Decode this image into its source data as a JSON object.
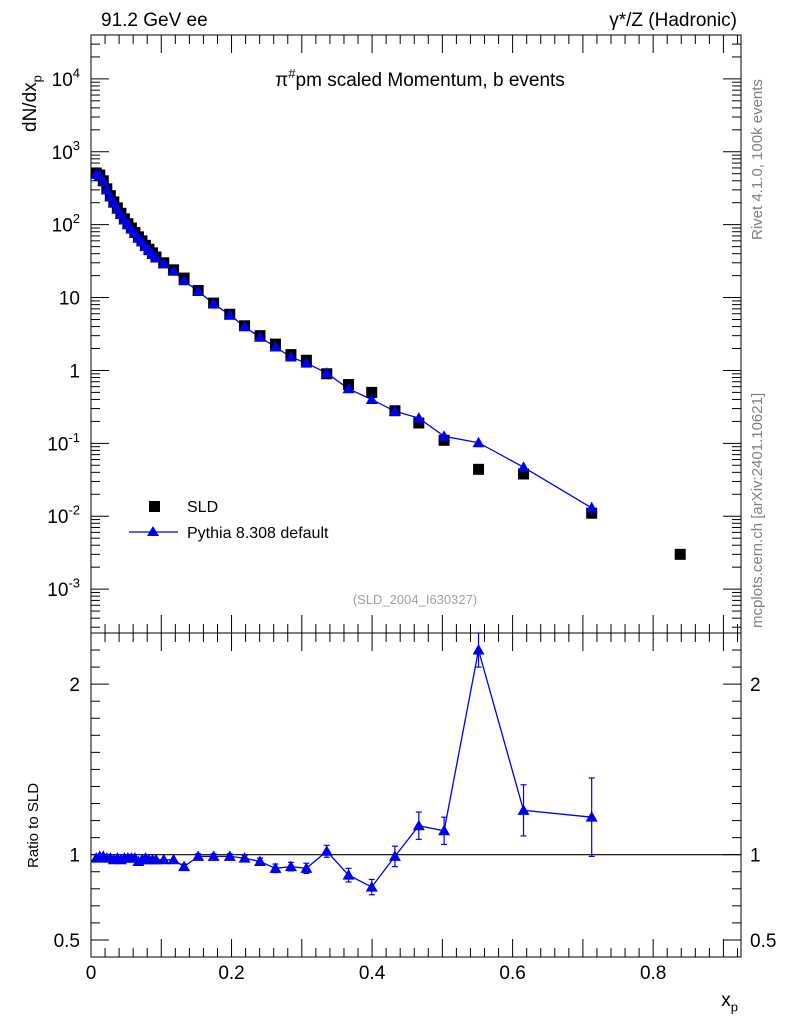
{
  "header": {
    "left": "91.2 GeV ee",
    "right": "γ*/Z (Hadronic)"
  },
  "side_text": {
    "rivet": "Rivet 4.1.0,  100k events",
    "source": "mcplots.cern.ch [arXiv:2401.10621]"
  },
  "chart_data": [
    {
      "type": "scatter",
      "title": "π#pm scaled Momentum, b events",
      "watermark": "(SLD_2004_I630327)",
      "xlabel": "x_p",
      "ylabel": "dN/dx_p",
      "yscale": "log",
      "xlim": [
        0,
        0.925
      ],
      "ylim": [
        0.00025,
        40000
      ],
      "y_tick_labels": [
        "10^{-3}",
        "10^{-2}",
        "10^{-1}",
        "1",
        "10",
        "10^{2}",
        "10^{3}",
        "10^{4}"
      ],
      "legend": {
        "placement": "bottom-left",
        "entries": [
          "SLD",
          "Pythia 8.308 default"
        ]
      },
      "series": [
        {
          "name": "SLD",
          "marker": "square",
          "color": "#000000",
          "x": [
            0.0075,
            0.0125,
            0.0175,
            0.0225,
            0.0275,
            0.0325,
            0.0375,
            0.0425,
            0.0475,
            0.0525,
            0.0575,
            0.0625,
            0.0675,
            0.0725,
            0.0775,
            0.0825,
            0.0875,
            0.0925,
            0.1035,
            0.1175,
            0.1325,
            0.1525,
            0.1745,
            0.1975,
            0.2185,
            0.2405,
            0.2625,
            0.2845,
            0.3065,
            0.3355,
            0.3665,
            0.3995,
            0.4325,
            0.4665,
            0.5025,
            0.5515,
            0.6155,
            0.7125,
            0.8385
          ],
          "y": [
            510,
            480,
            400,
            310,
            250,
            205,
            170,
            143,
            120,
            103,
            90,
            78,
            68,
            60,
            52,
            46,
            41,
            36,
            30,
            24,
            18.5,
            12.5,
            8.4,
            5.9,
            4.1,
            3.0,
            2.3,
            1.65,
            1.38,
            0.9,
            0.64,
            0.5,
            0.28,
            0.19,
            0.11,
            0.044,
            0.038,
            0.011,
            0.003
          ]
        },
        {
          "name": "Pythia 8.308 default",
          "marker": "triangle",
          "color": "#0000ee",
          "x": [
            0.0075,
            0.0125,
            0.0175,
            0.0225,
            0.0275,
            0.0325,
            0.0375,
            0.0425,
            0.0475,
            0.0525,
            0.0575,
            0.0625,
            0.0675,
            0.0725,
            0.0775,
            0.0825,
            0.0875,
            0.0925,
            0.1035,
            0.1175,
            0.1325,
            0.1525,
            0.1745,
            0.1975,
            0.2185,
            0.2405,
            0.2625,
            0.2845,
            0.3065,
            0.3355,
            0.3665,
            0.3995,
            0.4325,
            0.4665,
            0.5025,
            0.5515,
            0.6155,
            0.7125
          ],
          "y": [
            490,
            470,
            390,
            300,
            240,
            197,
            163,
            138,
            116,
            100,
            87,
            76,
            65,
            58,
            50,
            44,
            39,
            35,
            29,
            23,
            17,
            12.2,
            8.2,
            5.8,
            4.0,
            2.85,
            2.1,
            1.53,
            1.26,
            0.92,
            0.56,
            0.4,
            0.276,
            0.222,
            0.125,
            0.102,
            0.047,
            0.013
          ]
        }
      ]
    },
    {
      "type": "line",
      "title": "",
      "xlabel": "x_p",
      "ylabel": "Ratio to SLD",
      "ylim": [
        0.4,
        2.3
      ],
      "xlim": [
        0,
        0.925
      ],
      "y_ticks": [
        0.5,
        1,
        2
      ],
      "y_tick_labels": [
        "0.5",
        "1",
        "2"
      ],
      "x_ticks": [
        0,
        0.2,
        0.4,
        0.6,
        0.8
      ],
      "x_tick_labels": [
        "0",
        "0.2",
        "0.4",
        "0.6",
        "0.8"
      ],
      "reference_line": 1,
      "series": [
        {
          "name": "Pythia 8.308 default / SLD",
          "color": "#0000ee",
          "x": [
            0.0075,
            0.0125,
            0.0175,
            0.0225,
            0.0275,
            0.0325,
            0.0375,
            0.0425,
            0.0475,
            0.0525,
            0.0575,
            0.0625,
            0.0675,
            0.0725,
            0.0775,
            0.0825,
            0.0875,
            0.0925,
            0.1035,
            0.1175,
            0.1325,
            0.1525,
            0.1745,
            0.1975,
            0.2185,
            0.2405,
            0.2625,
            0.2845,
            0.3065,
            0.3355,
            0.3665,
            0.3995,
            0.4325,
            0.4665,
            0.5025,
            0.5515,
            0.6155,
            0.7125
          ],
          "values": [
            0.98,
            0.99,
            0.99,
            0.98,
            0.98,
            0.97,
            0.98,
            0.97,
            0.98,
            0.98,
            0.98,
            0.98,
            0.96,
            0.97,
            0.98,
            0.97,
            0.97,
            0.97,
            0.97,
            0.97,
            0.93,
            0.99,
            0.99,
            0.99,
            0.98,
            0.96,
            0.92,
            0.93,
            0.92,
            1.02,
            0.88,
            0.81,
            0.99,
            1.17,
            1.14,
            2.2,
            1.26,
            1.22
          ],
          "errors": [
            0.01,
            0.01,
            0.01,
            0.01,
            0.01,
            0.01,
            0.01,
            0.01,
            0.01,
            0.01,
            0.01,
            0.01,
            0.01,
            0.01,
            0.01,
            0.01,
            0.01,
            0.01,
            0.01,
            0.01,
            0.015,
            0.015,
            0.015,
            0.015,
            0.015,
            0.02,
            0.025,
            0.025,
            0.03,
            0.035,
            0.04,
            0.045,
            0.06,
            0.08,
            0.08,
            0.1,
            0.15,
            0.23
          ]
        }
      ]
    }
  ]
}
